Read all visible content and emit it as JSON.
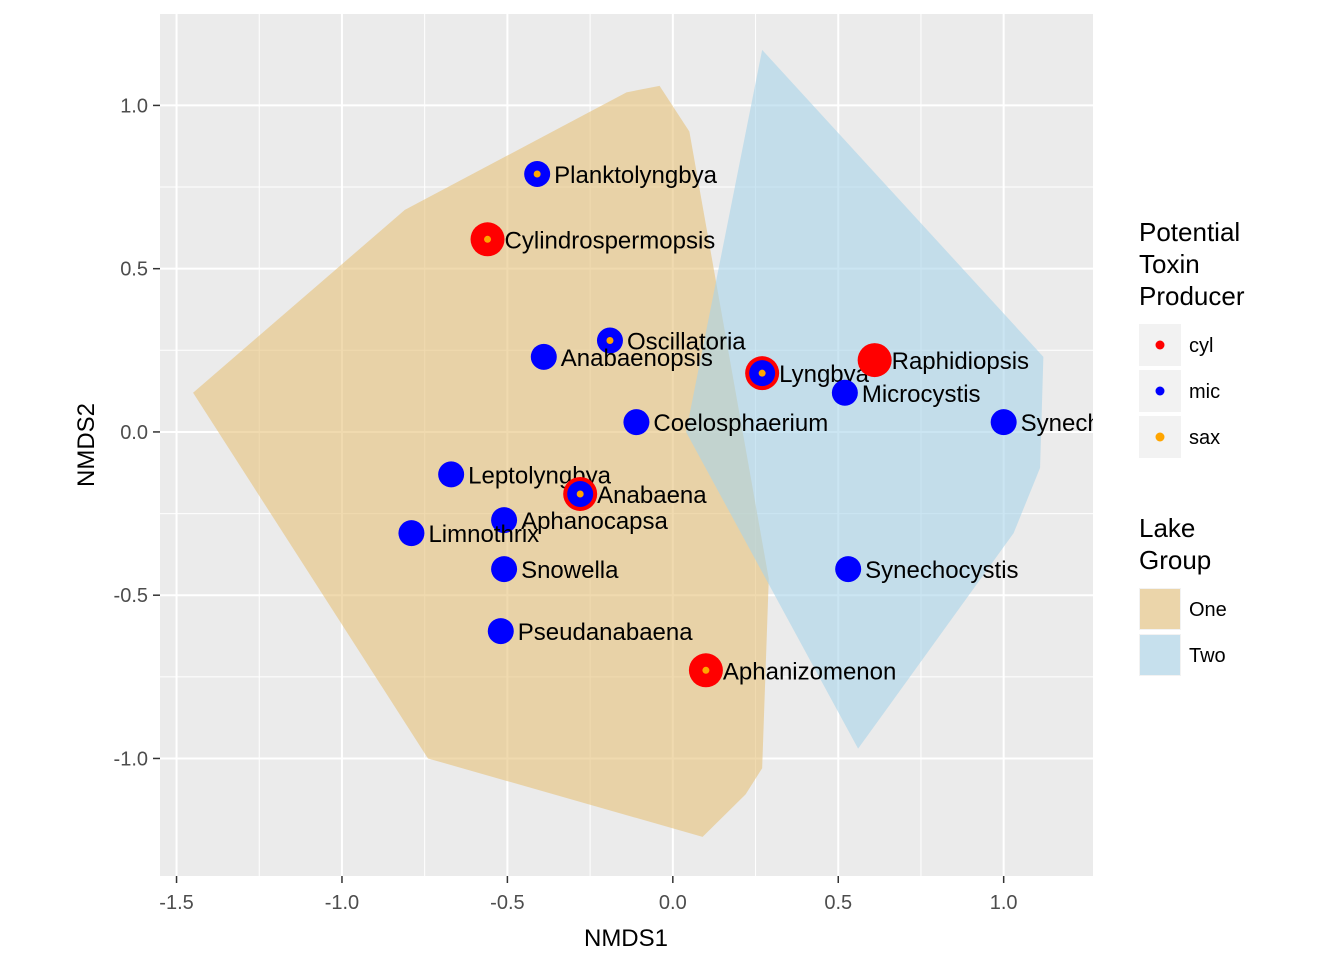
{
  "chart_data": {
    "type": "scatter",
    "xlabel": "NMDS1",
    "ylabel": "NMDS2",
    "xlim": [
      -1.55,
      1.27
    ],
    "ylim": [
      -1.36,
      1.28
    ],
    "x_ticks": [
      -1.5,
      -1.0,
      -0.5,
      0.0,
      0.5,
      1.0
    ],
    "x_tick_labels": [
      "-1.5",
      "-1.0",
      "-0.5",
      "0.0",
      "0.5",
      "1.0"
    ],
    "y_ticks": [
      -1.0,
      -0.5,
      0.0,
      0.5,
      1.0
    ],
    "y_tick_labels": [
      "-1.0",
      "-0.5",
      "0.0",
      "0.5",
      "1.0"
    ],
    "grid": true,
    "hulls": [
      {
        "name": "One",
        "color": "#e6c17a",
        "points": [
          [
            -1.45,
            0.12
          ],
          [
            -0.81,
            0.68
          ],
          [
            -0.14,
            1.04
          ],
          [
            -0.04,
            1.06
          ],
          [
            0.05,
            0.92
          ],
          [
            0.29,
            -0.45
          ],
          [
            0.27,
            -1.03
          ],
          [
            0.22,
            -1.11
          ],
          [
            0.09,
            -1.24
          ],
          [
            -0.74,
            -1.0
          ]
        ]
      },
      {
        "name": "Two",
        "color": "#a9d3ea",
        "points": [
          [
            0.27,
            1.17
          ],
          [
            1.12,
            0.23
          ],
          [
            1.11,
            -0.11
          ],
          [
            1.03,
            -0.31
          ],
          [
            0.56,
            -0.97
          ],
          [
            0.04,
            0.0
          ]
        ]
      }
    ],
    "points": [
      {
        "label": "Planktolyngbya",
        "x": -0.41,
        "y": 0.79,
        "producers": [
          "mic",
          "sax"
        ]
      },
      {
        "label": "Cylindrospermopsis",
        "x": -0.56,
        "y": 0.59,
        "producers": [
          "cyl",
          "sax"
        ]
      },
      {
        "label": "Oscillatoria",
        "x": -0.19,
        "y": 0.28,
        "producers": [
          "mic",
          "sax"
        ]
      },
      {
        "label": "Anabaenopsis",
        "x": -0.39,
        "y": 0.23,
        "producers": [
          "mic"
        ]
      },
      {
        "label": "Lyngbya",
        "x": 0.27,
        "y": 0.18,
        "producers": [
          "cyl",
          "mic",
          "sax"
        ]
      },
      {
        "label": "Raphidiopsis",
        "x": 0.61,
        "y": 0.22,
        "producers": [
          "cyl"
        ]
      },
      {
        "label": "Microcystis",
        "x": 0.52,
        "y": 0.12,
        "producers": [
          "mic"
        ]
      },
      {
        "label": "Synechococcus",
        "x": 1.0,
        "y": 0.03,
        "producers": [
          "mic"
        ]
      },
      {
        "label": "Coelosphaerium",
        "x": -0.11,
        "y": 0.03,
        "producers": [
          "mic"
        ]
      },
      {
        "label": "Leptolyngbya",
        "x": -0.67,
        "y": -0.13,
        "producers": [
          "mic"
        ]
      },
      {
        "label": "Anabaena",
        "x": -0.28,
        "y": -0.19,
        "producers": [
          "cyl",
          "mic",
          "sax"
        ]
      },
      {
        "label": "Aphanocapsa",
        "x": -0.51,
        "y": -0.27,
        "producers": [
          "mic"
        ]
      },
      {
        "label": "Limnothrix",
        "x": -0.79,
        "y": -0.31,
        "producers": [
          "mic"
        ]
      },
      {
        "label": "Snowella",
        "x": -0.51,
        "y": -0.42,
        "producers": [
          "mic"
        ]
      },
      {
        "label": "Synechocystis",
        "x": 0.53,
        "y": -0.42,
        "producers": [
          "mic"
        ]
      },
      {
        "label": "Pseudanabaena",
        "x": -0.52,
        "y": -0.61,
        "producers": [
          "mic"
        ]
      },
      {
        "label": "Aphanizomenon",
        "x": 0.1,
        "y": -0.73,
        "producers": [
          "cyl",
          "sax"
        ]
      }
    ],
    "producer_colors": {
      "cyl": "#ff0000",
      "mic": "#0000ff",
      "sax": "#ffa500"
    },
    "legends": [
      {
        "title_lines": [
          "Potential",
          "Toxin",
          "Producer"
        ],
        "kind": "point",
        "items": [
          {
            "label": "cyl",
            "color": "#ff0000"
          },
          {
            "label": "mic",
            "color": "#0000ff"
          },
          {
            "label": "sax",
            "color": "#ffa500"
          }
        ]
      },
      {
        "title_lines": [
          "Lake",
          "Group"
        ],
        "kind": "fill",
        "items": [
          {
            "label": "One",
            "color": "#e6c17a"
          },
          {
            "label": "Two",
            "color": "#a9d3ea"
          }
        ]
      }
    ]
  }
}
